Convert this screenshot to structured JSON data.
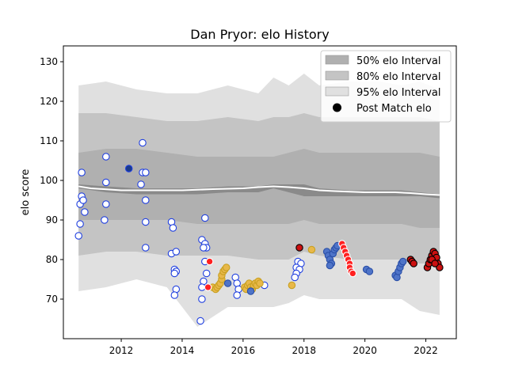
{
  "chart_data": {
    "type": "scatter",
    "title": "Dan Pryor: elo History",
    "ylabel": "elo score",
    "xlabel": "",
    "xlim": [
      2010.1,
      2023.0
    ],
    "ylim": [
      60,
      134
    ],
    "x_ticks": [
      2012,
      2014,
      2016,
      2018,
      2020,
      2022
    ],
    "y_ticks": [
      70,
      80,
      90,
      100,
      110,
      120,
      130
    ],
    "grid": false,
    "legend_position": "top-right",
    "legend": [
      {
        "label": "50% elo Interval",
        "color": "#b0b0b0",
        "kind": "patch"
      },
      {
        "label": "80% elo Interval",
        "color": "#c4c4c4",
        "kind": "patch"
      },
      {
        "label": "95% elo Interval",
        "color": "#e0e0e0",
        "kind": "patch"
      },
      {
        "label": "Post Match elo",
        "color": "#000000",
        "kind": "marker"
      }
    ],
    "bands": {
      "x": [
        2010.6,
        2011.5,
        2012.5,
        2013.5,
        2014.5,
        2015.5,
        2016.5,
        2017.0,
        2017.5,
        2018.0,
        2018.5,
        2019.5,
        2020.5,
        2021.2,
        2021.8,
        2022.45
      ],
      "band95_upper": [
        124,
        125,
        123,
        122,
        122,
        124,
        122,
        126,
        124,
        127,
        124,
        125,
        125,
        124,
        125,
        123
      ],
      "band95_lower": [
        72,
        73,
        75,
        73,
        63,
        68,
        68,
        68,
        69,
        71,
        70,
        70,
        70,
        70,
        67,
        66
      ],
      "band80_upper": [
        117,
        117,
        116,
        115,
        115,
        116,
        115,
        116,
        116,
        117,
        116,
        116,
        116,
        116,
        116,
        115
      ],
      "band80_lower": [
        81,
        82,
        82,
        81,
        81,
        81,
        80,
        80,
        80,
        82,
        81,
        80,
        80,
        80,
        79,
        79
      ],
      "band50_upper": [
        107,
        108,
        108,
        107,
        106,
        106,
        106,
        106,
        107,
        108,
        107,
        107,
        107,
        107,
        107,
        106
      ],
      "band50_lower": [
        90,
        90,
        90,
        90,
        89,
        89,
        89,
        89,
        89,
        90,
        89,
        89,
        89,
        89,
        88,
        88
      ],
      "inner_upper": [
        99,
        98.5,
        98,
        98,
        98,
        98.5,
        98.5,
        99,
        99,
        99,
        98,
        97.5,
        97.5,
        97.5,
        97,
        96.5
      ],
      "inner_lower": [
        98,
        97,
        96.5,
        96.5,
        96.5,
        97,
        97,
        98,
        97,
        96,
        96,
        96,
        96,
        96,
        96,
        95.5
      ]
    },
    "median_line": {
      "x": [
        2010.6,
        2011.0,
        2012.0,
        2013.0,
        2014.0,
        2015.0,
        2016.0,
        2016.5,
        2017.0,
        2017.5,
        2018.0,
        2018.5,
        2019.0,
        2020.0,
        2021.0,
        2021.5,
        2022.0,
        2022.45
      ],
      "y": [
        98.5,
        98.0,
        97.5,
        97.5,
        97.5,
        97.8,
        98.0,
        98.3,
        98.5,
        98.3,
        98.0,
        97.5,
        97.3,
        97.0,
        97.0,
        96.8,
        96.5,
        96.3
      ],
      "color": "#ffffff"
    },
    "series": [
      {
        "color": "#ffffff",
        "edge": "#1f3fe0",
        "points": [
          {
            "x": 2010.6,
            "y": 86
          },
          {
            "x": 2010.65,
            "y": 89
          },
          {
            "x": 2010.65,
            "y": 94
          },
          {
            "x": 2010.7,
            "y": 96
          },
          {
            "x": 2010.7,
            "y": 102
          },
          {
            "x": 2010.75,
            "y": 95
          },
          {
            "x": 2010.8,
            "y": 92
          },
          {
            "x": 2011.5,
            "y": 106
          },
          {
            "x": 2011.5,
            "y": 99.5
          },
          {
            "x": 2011.5,
            "y": 94
          },
          {
            "x": 2011.45,
            "y": 90
          },
          {
            "x": 2012.7,
            "y": 109.5
          },
          {
            "x": 2012.7,
            "y": 102
          },
          {
            "x": 2012.8,
            "y": 102
          },
          {
            "x": 2012.65,
            "y": 99
          },
          {
            "x": 2012.8,
            "y": 95
          },
          {
            "x": 2012.8,
            "y": 89.5
          },
          {
            "x": 2012.8,
            "y": 83
          },
          {
            "x": 2013.65,
            "y": 89.5
          },
          {
            "x": 2013.7,
            "y": 88
          },
          {
            "x": 2013.65,
            "y": 81.5
          },
          {
            "x": 2013.8,
            "y": 82
          },
          {
            "x": 2013.75,
            "y": 77.5
          },
          {
            "x": 2013.8,
            "y": 77
          },
          {
            "x": 2013.75,
            "y": 76.5
          },
          {
            "x": 2013.8,
            "y": 72.5
          },
          {
            "x": 2013.75,
            "y": 71
          },
          {
            "x": 2014.65,
            "y": 85
          },
          {
            "x": 2014.75,
            "y": 90.5
          },
          {
            "x": 2014.75,
            "y": 84
          },
          {
            "x": 2014.8,
            "y": 83
          },
          {
            "x": 2014.7,
            "y": 83
          },
          {
            "x": 2014.75,
            "y": 79.5
          },
          {
            "x": 2014.8,
            "y": 76.5
          },
          {
            "x": 2014.7,
            "y": 74.5
          },
          {
            "x": 2014.65,
            "y": 73
          },
          {
            "x": 2014.65,
            "y": 70
          },
          {
            "x": 2014.6,
            "y": 64.5
          },
          {
            "x": 2015.75,
            "y": 75.5
          },
          {
            "x": 2015.8,
            "y": 74
          },
          {
            "x": 2015.85,
            "y": 72.5
          },
          {
            "x": 2015.8,
            "y": 71
          },
          {
            "x": 2016.7,
            "y": 73.5
          },
          {
            "x": 2017.8,
            "y": 79.5
          },
          {
            "x": 2017.9,
            "y": 79
          },
          {
            "x": 2017.75,
            "y": 78
          },
          {
            "x": 2017.85,
            "y": 77.5
          },
          {
            "x": 2017.75,
            "y": 76.5
          },
          {
            "x": 2017.7,
            "y": 75.5
          }
        ]
      },
      {
        "color": "#1a3a8a",
        "edge": "#1f3fe0",
        "points": [
          {
            "x": 2012.25,
            "y": 103
          }
        ]
      },
      {
        "color": "#e8b84a",
        "edge": "#c8a020",
        "points": [
          {
            "x": 2015.0,
            "y": 73
          },
          {
            "x": 2015.1,
            "y": 72.5
          },
          {
            "x": 2015.15,
            "y": 73
          },
          {
            "x": 2015.2,
            "y": 73.5
          },
          {
            "x": 2015.25,
            "y": 74
          },
          {
            "x": 2015.3,
            "y": 75
          },
          {
            "x": 2015.3,
            "y": 76
          },
          {
            "x": 2015.35,
            "y": 77
          },
          {
            "x": 2015.4,
            "y": 77.5
          },
          {
            "x": 2015.45,
            "y": 78
          },
          {
            "x": 2016.05,
            "y": 73
          },
          {
            "x": 2016.1,
            "y": 72.5
          },
          {
            "x": 2016.15,
            "y": 73.5
          },
          {
            "x": 2016.2,
            "y": 74
          },
          {
            "x": 2016.25,
            "y": 73
          },
          {
            "x": 2016.3,
            "y": 72.5
          },
          {
            "x": 2016.35,
            "y": 73.5
          },
          {
            "x": 2016.4,
            "y": 74
          },
          {
            "x": 2016.45,
            "y": 73.5
          },
          {
            "x": 2016.5,
            "y": 74.5
          },
          {
            "x": 2016.55,
            "y": 74
          },
          {
            "x": 2017.6,
            "y": 73.5
          },
          {
            "x": 2018.25,
            "y": 82.5
          }
        ]
      },
      {
        "color": "#4f74c8",
        "edge": "#2a4fa8",
        "points": [
          {
            "x": 2015.5,
            "y": 74
          },
          {
            "x": 2016.25,
            "y": 72
          },
          {
            "x": 2018.75,
            "y": 82
          },
          {
            "x": 2018.8,
            "y": 81
          },
          {
            "x": 2018.85,
            "y": 80
          },
          {
            "x": 2018.9,
            "y": 79
          },
          {
            "x": 2018.95,
            "y": 81.5
          },
          {
            "x": 2019.0,
            "y": 82.5
          },
          {
            "x": 2019.05,
            "y": 83
          },
          {
            "x": 2019.1,
            "y": 83.5
          },
          {
            "x": 2018.85,
            "y": 78.5
          },
          {
            "x": 2020.05,
            "y": 77.5
          },
          {
            "x": 2020.15,
            "y": 77
          },
          {
            "x": 2021.0,
            "y": 76
          },
          {
            "x": 2021.05,
            "y": 75.5
          },
          {
            "x": 2021.1,
            "y": 77
          },
          {
            "x": 2021.15,
            "y": 78
          },
          {
            "x": 2021.2,
            "y": 79
          },
          {
            "x": 2021.25,
            "y": 79.5
          }
        ]
      },
      {
        "color": "#ff2020",
        "edge": "#ffffff",
        "points": [
          {
            "x": 2019.25,
            "y": 84
          },
          {
            "x": 2019.3,
            "y": 83
          },
          {
            "x": 2019.35,
            "y": 82
          },
          {
            "x": 2019.4,
            "y": 81
          },
          {
            "x": 2019.45,
            "y": 80
          },
          {
            "x": 2019.5,
            "y": 79
          },
          {
            "x": 2019.5,
            "y": 78
          },
          {
            "x": 2019.55,
            "y": 77
          },
          {
            "x": 2019.6,
            "y": 76.5
          },
          {
            "x": 2014.9,
            "y": 79.5
          },
          {
            "x": 2014.85,
            "y": 73
          }
        ]
      },
      {
        "color": "#cc1010",
        "edge": "#000000",
        "points": [
          {
            "x": 2017.85,
            "y": 83
          },
          {
            "x": 2021.5,
            "y": 80
          },
          {
            "x": 2021.55,
            "y": 79.5
          },
          {
            "x": 2021.6,
            "y": 79
          },
          {
            "x": 2022.05,
            "y": 78
          },
          {
            "x": 2022.1,
            "y": 79
          },
          {
            "x": 2022.15,
            "y": 80
          },
          {
            "x": 2022.2,
            "y": 81
          },
          {
            "x": 2022.25,
            "y": 82
          },
          {
            "x": 2022.3,
            "y": 81.5
          },
          {
            "x": 2022.35,
            "y": 80.5
          },
          {
            "x": 2022.4,
            "y": 79
          },
          {
            "x": 2022.45,
            "y": 78
          },
          {
            "x": 2022.2,
            "y": 80
          },
          {
            "x": 2022.3,
            "y": 79
          }
        ]
      }
    ]
  }
}
